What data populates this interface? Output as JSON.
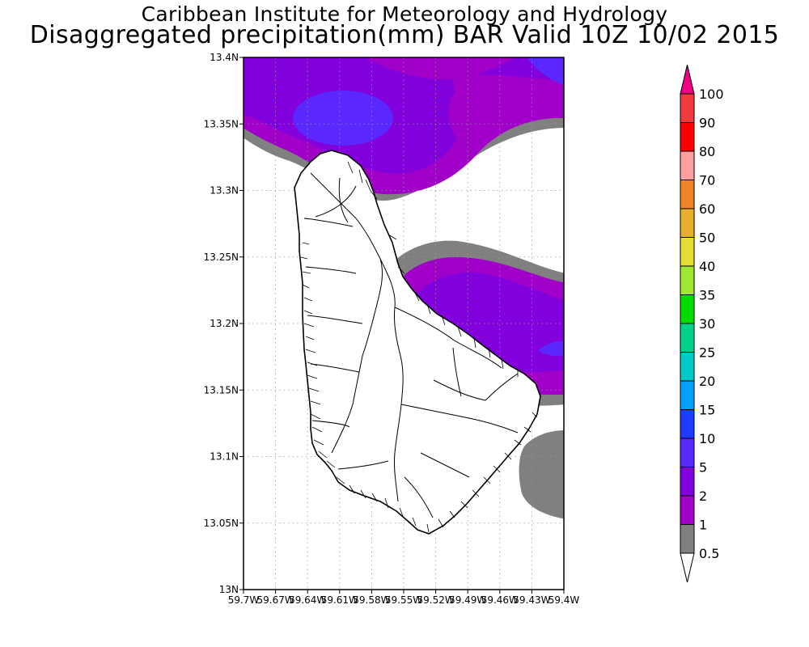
{
  "header": {
    "title": "Caribbean Institute for Meteorology and Hydrology",
    "subtitle": "Disaggregated precipitation(mm) BAR Valid 10Z 10/02 2015"
  },
  "map": {
    "region": "Barbados",
    "lat_range": [
      13.0,
      13.4
    ],
    "lon_range": [
      -59.7,
      -59.4
    ],
    "grid": true,
    "lat_ticks": [
      "13.4N",
      "13.35N",
      "13.3N",
      "13.25N",
      "13.2N",
      "13.15N",
      "13.1N",
      "13.05N",
      "13N"
    ],
    "lon_ticks": [
      "59.7W",
      "59.67W",
      "59.64W",
      "59.61W",
      "59.58W",
      "59.55W",
      "59.52W",
      "59.49W",
      "59.46W",
      "59.43W",
      "59.4W"
    ]
  },
  "colorbar": {
    "levels": [
      {
        "label": "0.5",
        "color": "#ffffff"
      },
      {
        "label": "1",
        "color": "#808080"
      },
      {
        "label": "2",
        "color": "#a000c8"
      },
      {
        "label": "5",
        "color": "#8200dc"
      },
      {
        "label": "10",
        "color": "#5a28ff"
      },
      {
        "label": "15",
        "color": "#1e3cff"
      },
      {
        "label": "20",
        "color": "#00a0ff"
      },
      {
        "label": "25",
        "color": "#00c8c8"
      },
      {
        "label": "30",
        "color": "#00d28c"
      },
      {
        "label": "35",
        "color": "#00dc00"
      },
      {
        "label": "40",
        "color": "#a0e632"
      },
      {
        "label": "50",
        "color": "#e6dc32"
      },
      {
        "label": "60",
        "color": "#e6af2d"
      },
      {
        "label": "70",
        "color": "#f08228"
      },
      {
        "label": "80",
        "color": "#ffa0a0"
      },
      {
        "label": "90",
        "color": "#fa0000"
      },
      {
        "label": "100",
        "color": "#f03c3c"
      }
    ],
    "over_color": "#f00082"
  }
}
